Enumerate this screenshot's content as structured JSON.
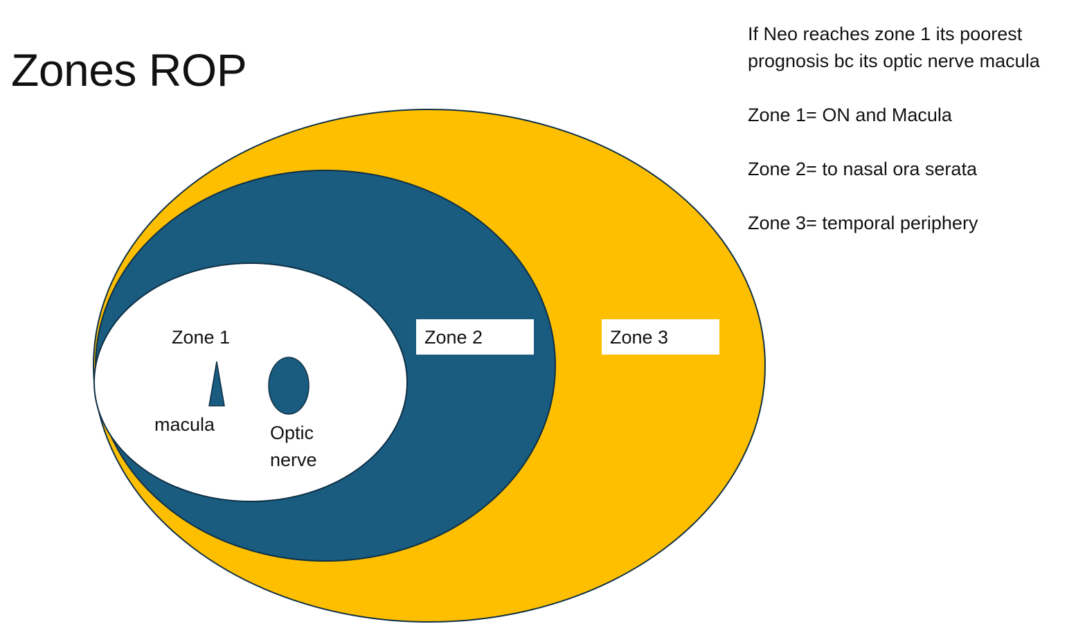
{
  "title": "Zones ROP",
  "notes": {
    "intro": "If Neo reaches zone 1 its poorest prognosis bc its optic nerve macula",
    "definitions": [
      "Zone 1= ON and Macula",
      "Zone 2= to nasal ora serata",
      "Zone 3= temporal periphery"
    ]
  },
  "diagram": {
    "zone1_label": "Zone 1",
    "zone2_label": "Zone 2",
    "zone3_label": "Zone 3",
    "macula_label": "macula",
    "optic_nerve_label_line1": "Optic",
    "optic_nerve_label_line2": "nerve"
  },
  "colors": {
    "zone3_fill": "#FDBF00",
    "zone2_fill": "#195C80",
    "zone1_fill": "#FFFFFF",
    "outline": "#0E2F45"
  }
}
